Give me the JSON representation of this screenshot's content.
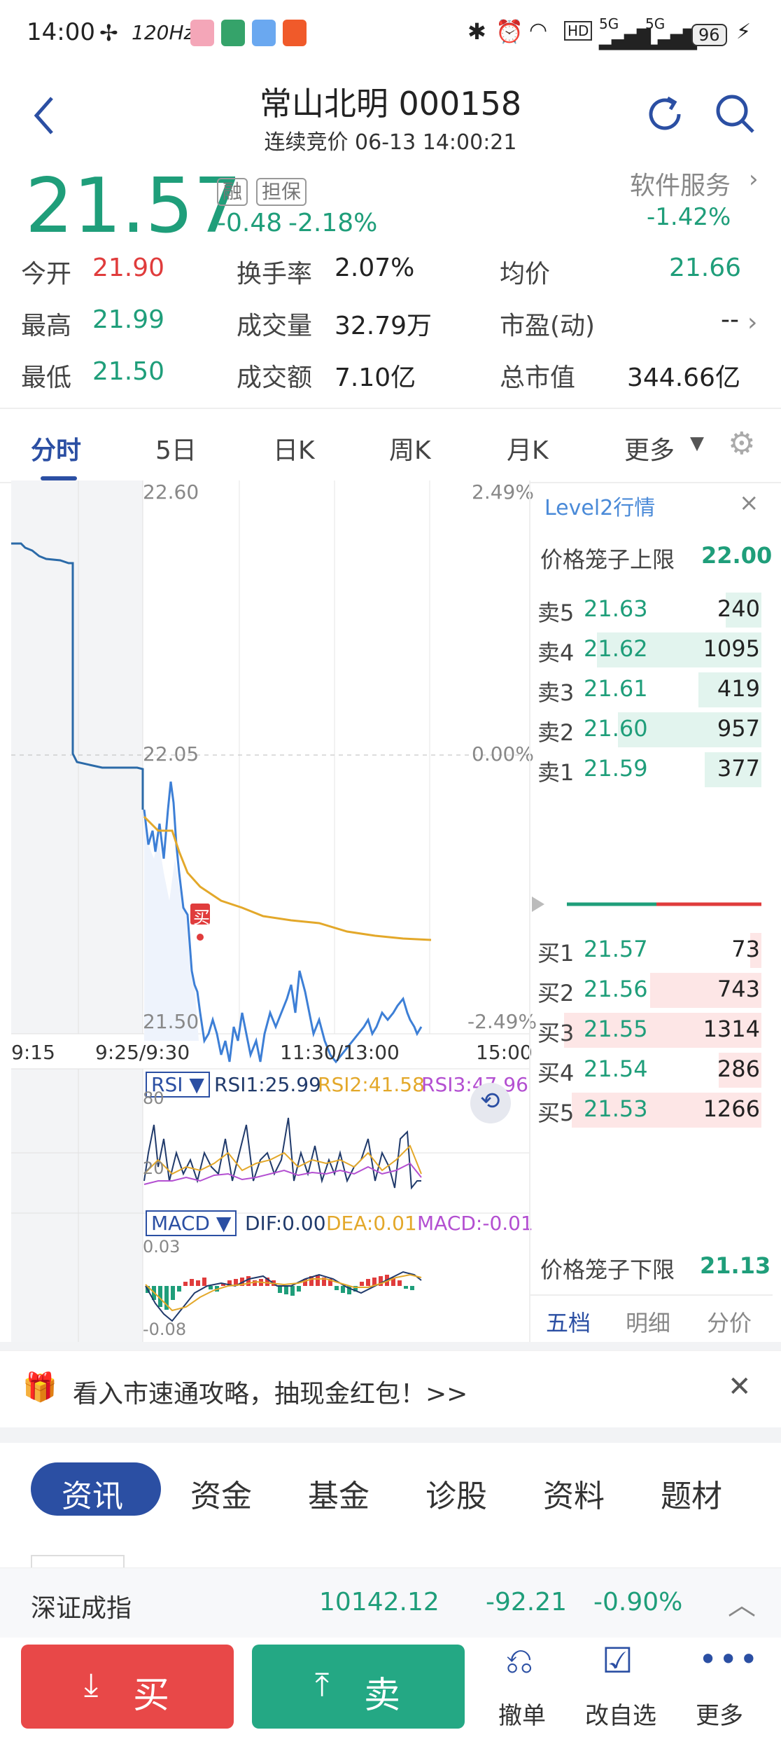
{
  "status": {
    "time": "14:00",
    "refresh": "120Hz",
    "battery": "96",
    "net1": "5G",
    "net2": "5G"
  },
  "header": {
    "title": "常山北明 000158",
    "subtitle": "连续竞价 06-13 14:00:21"
  },
  "quote": {
    "price": "21.57",
    "tag1": "融",
    "tag2": "担保",
    "change": "-0.48",
    "change_pct": "-2.18%",
    "sector_name": "软件服务",
    "sector_pct": "-1.42%"
  },
  "stats": [
    {
      "label": "今开",
      "value": "21.90"
    },
    {
      "label": "换手率",
      "value": "2.07%"
    },
    {
      "label": "均价",
      "value": "21.66"
    },
    {
      "label": "最高",
      "value": "21.99"
    },
    {
      "label": "成交量",
      "value": "32.79万"
    },
    {
      "label": "市盈(动)",
      "value": "--"
    },
    {
      "label": "最低",
      "value": "21.50"
    },
    {
      "label": "成交额",
      "value": "7.10亿"
    },
    {
      "label": "总市值",
      "value": "344.66亿"
    }
  ],
  "chart_tabs": [
    "分时",
    "5日",
    "日K",
    "周K",
    "月K",
    "更多"
  ],
  "chart": {
    "y_top": "22.60",
    "y_mid": "22.05",
    "y_bot": "21.50",
    "pct_top": "2.49%",
    "pct_mid": "0.00%",
    "pct_bot": "-2.49%",
    "x_labels": [
      "9:15",
      "9:25/9:30",
      "11:30/13:00",
      "15:00"
    ],
    "buy_marker": "买",
    "rsi_label": "RSI",
    "rsi1": "RSI1:25.99",
    "rsi2": "RSI2:41.58",
    "rsi3": "RSI3:47.96",
    "rsi_top": "80",
    "rsi_bot": "20",
    "macd_label": "MACD",
    "dif": "DIF:0.00",
    "dea": "DEA:0.01",
    "macd": "MACD:-0.01",
    "macd_top": "0.03",
    "macd_bot": "-0.08"
  },
  "level2": {
    "title": "Level2行情",
    "upper_label": "价格笼子上限",
    "upper_value": "22.00",
    "lower_label": "价格笼子下限",
    "lower_value": "21.13",
    "sells": [
      {
        "label": "卖5",
        "price": "21.63",
        "vol": "240"
      },
      {
        "label": "卖4",
        "price": "21.62",
        "vol": "1095"
      },
      {
        "label": "卖3",
        "price": "21.61",
        "vol": "419"
      },
      {
        "label": "卖2",
        "price": "21.60",
        "vol": "957"
      },
      {
        "label": "卖1",
        "price": "21.59",
        "vol": "377"
      }
    ],
    "buys": [
      {
        "label": "买1",
        "price": "21.57",
        "vol": "73"
      },
      {
        "label": "买2",
        "price": "21.56",
        "vol": "743"
      },
      {
        "label": "买3",
        "price": "21.55",
        "vol": "1314"
      },
      {
        "label": "买4",
        "price": "21.54",
        "vol": "286"
      },
      {
        "label": "买5",
        "price": "21.53",
        "vol": "1266"
      }
    ],
    "tabs": [
      "五档",
      "明细",
      "分价"
    ]
  },
  "banner": {
    "text": "看入市速通攻略，抽现金红包！>>"
  },
  "news_tabs": [
    "资讯",
    "资金",
    "基金",
    "诊股",
    "资料",
    "题材"
  ],
  "index_bar": {
    "name": "深证成指",
    "value": "10142.12",
    "change": "-92.21",
    "pct": "-0.90%"
  },
  "bottom": {
    "buy": "买",
    "sell": "卖",
    "cancel": "撤单",
    "watch": "改自选",
    "more": "更多"
  },
  "colors": {
    "green": "#1f9e7a",
    "red": "#e03c3c",
    "accent": "#2b4fa3"
  }
}
